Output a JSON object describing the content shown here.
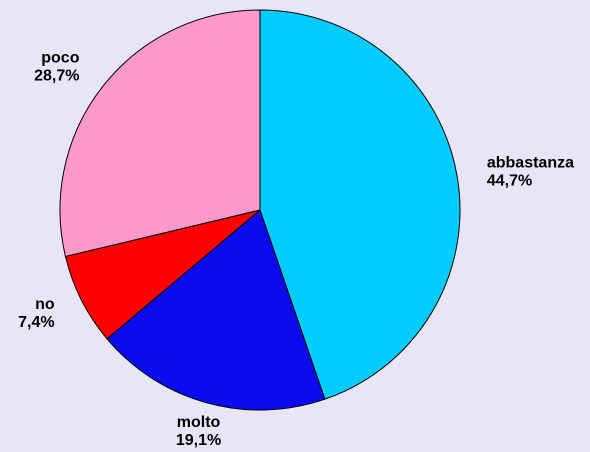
{
  "chart_data": {
    "type": "pie",
    "categories": [
      "abbastanza",
      "molto",
      "no",
      "poco"
    ],
    "values": [
      44.7,
      19.1,
      7.4,
      28.7
    ],
    "value_labels": [
      "44,7%",
      "19,1%",
      "7,4%",
      "28,7%"
    ],
    "colors": [
      "#00ccff",
      "#0a0aee",
      "#ff0000",
      "#ff99cc"
    ]
  }
}
